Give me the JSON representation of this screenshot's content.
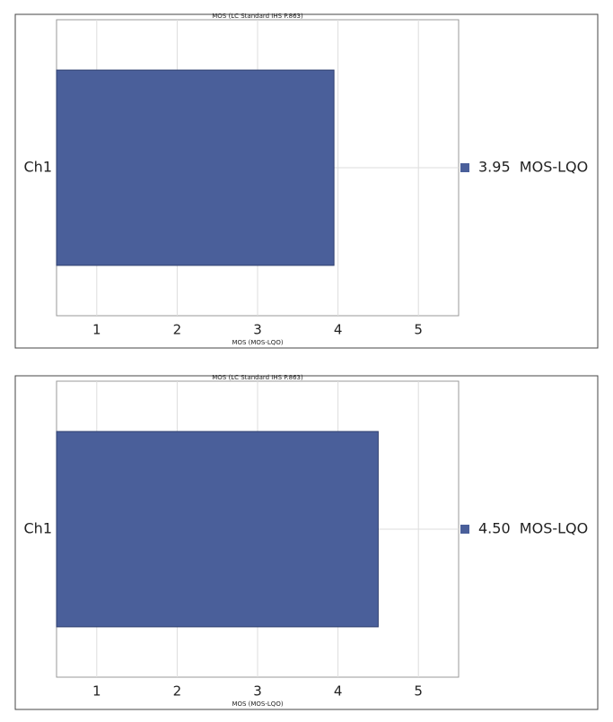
{
  "chart_data": [
    {
      "type": "bar",
      "orientation": "horizontal",
      "title": "MOS (LC Standard IHS P.863)",
      "xlabel": "MOS (MOS-LQO)",
      "categories": [
        "Ch1"
      ],
      "values": [
        3.95
      ],
      "value_labels": [
        "3.95  MOS-LQO"
      ],
      "color": "#4a5f9a",
      "xlim": [
        0.5,
        5.5
      ],
      "xticks": [
        1,
        2,
        3,
        4,
        5
      ],
      "grid": true
    },
    {
      "type": "bar",
      "orientation": "horizontal",
      "title": "MOS (LC Standard IHS P.863)",
      "xlabel": "MOS (MOS-LQO)",
      "categories": [
        "Ch1"
      ],
      "values": [
        4.5
      ],
      "value_labels": [
        "4.50  MOS-LQO"
      ],
      "color": "#4a5f9a",
      "xlim": [
        0.5,
        5.5
      ],
      "xticks": [
        1,
        2,
        3,
        4,
        5
      ],
      "grid": true
    }
  ]
}
